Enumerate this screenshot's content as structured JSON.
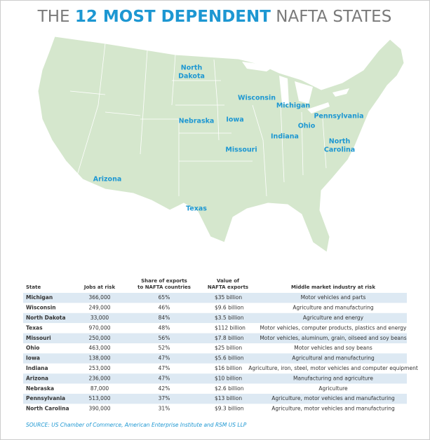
{
  "title": {
    "prefix": "THE",
    "highlight": "12 MOST DEPENDENT",
    "suffix": "NAFTA STATES"
  },
  "map": {
    "labels": [
      {
        "lines": [
          "North",
          "Dakota"
        ]
      },
      {
        "lines": [
          "Wisconsin"
        ]
      },
      {
        "lines": [
          "Michigan"
        ]
      },
      {
        "lines": [
          "Nebraska"
        ]
      },
      {
        "lines": [
          "Iowa"
        ]
      },
      {
        "lines": [
          "Pennsylvania"
        ]
      },
      {
        "lines": [
          "Ohio"
        ]
      },
      {
        "lines": [
          "Indiana"
        ]
      },
      {
        "lines": [
          "North",
          "Carolina"
        ]
      },
      {
        "lines": [
          "Missouri"
        ]
      },
      {
        "lines": [
          "Arizona"
        ]
      },
      {
        "lines": [
          "Texas"
        ]
      }
    ]
  },
  "table": {
    "headers": [
      [
        "State"
      ],
      [
        "Jobs at risk"
      ],
      [
        "Share of exports",
        "to NAFTA countries"
      ],
      [
        "Value of",
        "NAFTA exports"
      ],
      [
        "Middle market industry at risk"
      ]
    ],
    "rows": [
      [
        "Michigan",
        "366,000",
        "65%",
        "$35 billion",
        "Motor vehicles and parts"
      ],
      [
        "Wisconsin",
        "249,000",
        "46%",
        "$9.6 billion",
        "Agriculture and manufacturing"
      ],
      [
        "North Dakota",
        "33,000",
        "84%",
        "$3.5 billion",
        "Agriculture and energy"
      ],
      [
        "Texas",
        "970,000",
        "48%",
        "$112 billion",
        "Motor vehicles, computer products, plastics and energy"
      ],
      [
        "Missouri",
        "250,000",
        "56%",
        "$7.8 billion",
        "Motor vehicles, aluminum, grain, oilseed and soy beans"
      ],
      [
        "Ohio",
        "463,000",
        "52%",
        "$25 billion",
        "Motor vehicles and soy beans"
      ],
      [
        "Iowa",
        "138,000",
        "47%",
        "$5.6 billion",
        "Agricultural and manufacturing"
      ],
      [
        "Indiana",
        "253,000",
        "47%",
        "$16 billion",
        "Agriculture, iron, steel, motor vehicles and computer equipment"
      ],
      [
        "Arizona",
        "236,000",
        "47%",
        "$10 billion",
        "Manufacturing and agriculture"
      ],
      [
        "Nebraska",
        "87,000",
        "42%",
        "$2.6 billion",
        "Agriculture"
      ],
      [
        "Pennsylvania",
        "513,000",
        "37%",
        "$13 billion",
        "Agriculture, motor vehicles and manufacturing"
      ],
      [
        "North Carolina",
        "390,000",
        "31%",
        "$9.3 billion",
        "Agriculture, motor vehicles and manufacturing"
      ]
    ]
  },
  "source": "SOURCE: US Chamber of Commerce, American Enterprise Institute and RSM US LLP"
}
